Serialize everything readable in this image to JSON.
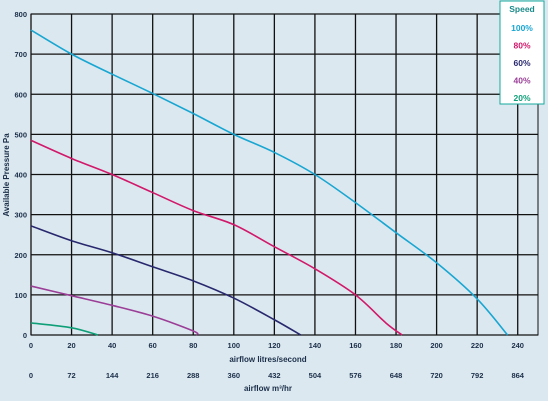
{
  "chart_data": {
    "type": "line",
    "ylabel": "Available Pressure Pa",
    "xlabel": "airflow litres/second",
    "x2label": "airflow m³/hr",
    "xlim": [
      0,
      250
    ],
    "ylim": [
      0,
      800
    ],
    "x_ticks": [
      0,
      20,
      40,
      60,
      80,
      100,
      120,
      140,
      160,
      180,
      200,
      220,
      240
    ],
    "x2_ticks": [
      0,
      72,
      144,
      216,
      288,
      360,
      432,
      504,
      576,
      648,
      720,
      792,
      864
    ],
    "y_ticks": [
      0,
      100,
      200,
      300,
      400,
      500,
      600,
      700,
      800
    ],
    "grid": true,
    "legend": {
      "title": "Speed",
      "placement": "top-right"
    },
    "series": [
      {
        "name": "100%",
        "color": "#18a6d2",
        "points": [
          [
            0,
            760
          ],
          [
            20,
            700
          ],
          [
            40,
            650
          ],
          [
            60,
            602
          ],
          [
            80,
            552
          ],
          [
            100,
            500
          ],
          [
            120,
            455
          ],
          [
            140,
            400
          ],
          [
            160,
            330
          ],
          [
            180,
            255
          ],
          [
            200,
            180
          ],
          [
            220,
            90
          ],
          [
            235,
            0
          ]
        ]
      },
      {
        "name": "80%",
        "color": "#d1186a",
        "points": [
          [
            0,
            485
          ],
          [
            20,
            440
          ],
          [
            40,
            400
          ],
          [
            60,
            355
          ],
          [
            80,
            310
          ],
          [
            100,
            275
          ],
          [
            120,
            220
          ],
          [
            140,
            165
          ],
          [
            160,
            100
          ],
          [
            175,
            30
          ],
          [
            183,
            0
          ]
        ]
      },
      {
        "name": "60%",
        "color": "#27286e",
        "points": [
          [
            0,
            272
          ],
          [
            20,
            235
          ],
          [
            40,
            205
          ],
          [
            60,
            170
          ],
          [
            80,
            135
          ],
          [
            100,
            92
          ],
          [
            120,
            38
          ],
          [
            133,
            0
          ]
        ]
      },
      {
        "name": "40%",
        "color": "#9a3e97",
        "points": [
          [
            0,
            122
          ],
          [
            20,
            98
          ],
          [
            40,
            74
          ],
          [
            60,
            47
          ],
          [
            80,
            10
          ],
          [
            82,
            0
          ]
        ]
      },
      {
        "name": "20%",
        "color": "#0f9f78",
        "points": [
          [
            0,
            30
          ],
          [
            20,
            18
          ],
          [
            33,
            0
          ]
        ]
      }
    ]
  },
  "legend_colors": {
    "border": "#13a89e",
    "title": "#1a8a8a"
  }
}
